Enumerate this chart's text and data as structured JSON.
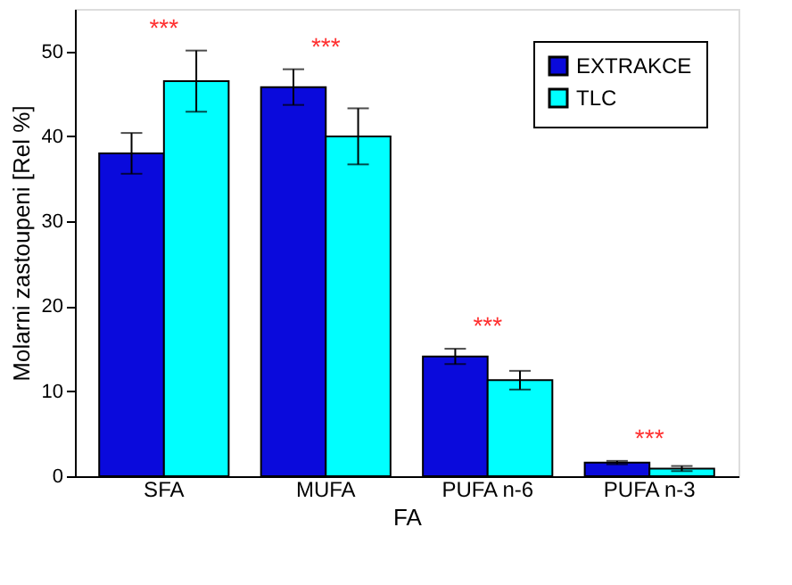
{
  "chart_data": {
    "type": "bar",
    "xlabel": "FA",
    "ylabel": "Molarni zastoupeni [Rel %]",
    "categories": [
      "SFA",
      "MUFA",
      "PUFA n-6",
      "PUFA n-3"
    ],
    "series": [
      {
        "name": "EXTRAKCE",
        "color": "#0a0adc",
        "values": [
          38,
          45.8,
          14.1,
          1.6
        ],
        "errors": [
          2.4,
          2.1,
          0.9,
          0.2
        ]
      },
      {
        "name": "TLC",
        "color": "#00ffff",
        "values": [
          46.5,
          40,
          11.3,
          0.9
        ],
        "errors": [
          3.6,
          3.3,
          1.1,
          0.3
        ]
      }
    ],
    "ylim": [
      0,
      55
    ],
    "yticks": [
      0,
      10,
      20,
      30,
      40,
      50
    ],
    "grid": false,
    "legend": "top right",
    "annotations": [
      "***",
      "***",
      "***",
      "***"
    ]
  }
}
